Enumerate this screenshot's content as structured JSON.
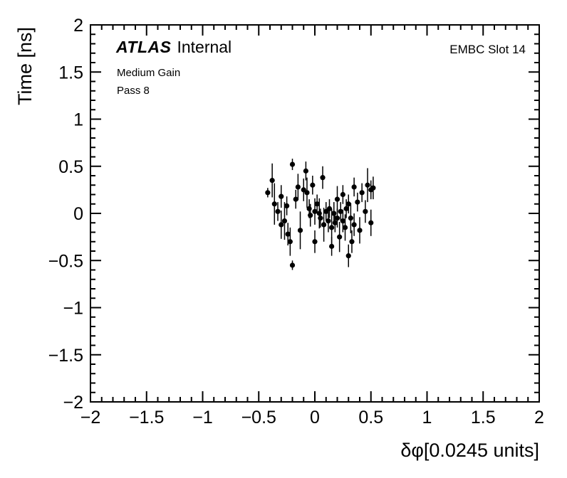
{
  "annotations": {
    "atlas": "ATLAS",
    "atlas_rest": "Internal",
    "gain": "Medium Gain",
    "pass": "Pass 8",
    "slot": "EMBC Slot 14"
  },
  "chart_data": {
    "type": "scatter",
    "title": "",
    "xlabel": "δφ[0.0245 units]",
    "ylabel": "Time [ns]",
    "xlim": [
      -2,
      2
    ],
    "ylim": [
      -2,
      2
    ],
    "grid": false,
    "legend": "none",
    "marker_color": "#000000",
    "xticks": {
      "values": [
        -2,
        -1.5,
        -1,
        -0.5,
        0,
        0.5,
        1,
        1.5,
        2
      ],
      "labels": [
        "−2",
        "−1.5",
        "−1",
        "−0.5",
        "0",
        "0.5",
        "1",
        "1.5",
        "2"
      ]
    },
    "yticks": {
      "values": [
        -2,
        -1.5,
        -1,
        -0.5,
        0,
        0.5,
        1,
        1.5,
        2
      ],
      "labels": [
        "−2",
        "−1.5",
        "−1",
        "−0.5",
        "0",
        "0.5",
        "1",
        "1.5",
        "2"
      ]
    },
    "minor_per_major": 5,
    "points": [
      {
        "x": -0.42,
        "y": 0.22,
        "ey": 0.05
      },
      {
        "x": -0.38,
        "y": 0.35,
        "ey": 0.18
      },
      {
        "x": -0.36,
        "y": 0.1,
        "ey": 0.22
      },
      {
        "x": -0.33,
        "y": 0.02,
        "ey": 0.1
      },
      {
        "x": -0.3,
        "y": 0.18,
        "ey": 0.12
      },
      {
        "x": -0.3,
        "y": -0.12,
        "ey": 0.15
      },
      {
        "x": -0.27,
        "y": -0.08,
        "ey": 0.2
      },
      {
        "x": -0.25,
        "y": 0.08,
        "ey": 0.1
      },
      {
        "x": -0.24,
        "y": -0.22,
        "ey": 0.12
      },
      {
        "x": -0.22,
        "y": -0.3,
        "ey": 0.15
      },
      {
        "x": -0.2,
        "y": -0.55,
        "ey": 0.05
      },
      {
        "x": -0.2,
        "y": 0.52,
        "ey": 0.06
      },
      {
        "x": -0.17,
        "y": 0.15,
        "ey": 0.1
      },
      {
        "x": -0.15,
        "y": 0.28,
        "ey": 0.14
      },
      {
        "x": -0.13,
        "y": -0.18,
        "ey": 0.2
      },
      {
        "x": -0.1,
        "y": 0.25,
        "ey": 0.12
      },
      {
        "x": -0.08,
        "y": 0.45,
        "ey": 0.1
      },
      {
        "x": -0.07,
        "y": 0.22,
        "ey": 0.16
      },
      {
        "x": -0.05,
        "y": 0.05,
        "ey": 0.1
      },
      {
        "x": -0.04,
        "y": -0.02,
        "ey": 0.12
      },
      {
        "x": -0.02,
        "y": 0.3,
        "ey": 0.1
      },
      {
        "x": 0.0,
        "y": 0.02,
        "ey": 0.14
      },
      {
        "x": 0.0,
        "y": -0.3,
        "ey": 0.12
      },
      {
        "x": 0.02,
        "y": 0.1,
        "ey": 0.1
      },
      {
        "x": 0.04,
        "y": 0.0,
        "ey": 0.16
      },
      {
        "x": 0.05,
        "y": -0.05,
        "ey": 0.1
      },
      {
        "x": 0.07,
        "y": 0.38,
        "ey": 0.12
      },
      {
        "x": 0.08,
        "y": -0.12,
        "ey": 0.18
      },
      {
        "x": 0.1,
        "y": 0.02,
        "ey": 0.1
      },
      {
        "x": 0.12,
        "y": -0.08,
        "ey": 0.12
      },
      {
        "x": 0.13,
        "y": 0.05,
        "ey": 0.1
      },
      {
        "x": 0.15,
        "y": -0.15,
        "ey": 0.2
      },
      {
        "x": 0.15,
        "y": -0.35,
        "ey": 0.1
      },
      {
        "x": 0.17,
        "y": 0.0,
        "ey": 0.12
      },
      {
        "x": 0.18,
        "y": -0.1,
        "ey": 0.1
      },
      {
        "x": 0.2,
        "y": 0.15,
        "ey": 0.14
      },
      {
        "x": 0.2,
        "y": -0.05,
        "ey": 0.1
      },
      {
        "x": 0.22,
        "y": -0.25,
        "ey": 0.16
      },
      {
        "x": 0.23,
        "y": 0.02,
        "ey": 0.1
      },
      {
        "x": 0.25,
        "y": -0.08,
        "ey": 0.12
      },
      {
        "x": 0.25,
        "y": 0.2,
        "ey": 0.1
      },
      {
        "x": 0.27,
        "y": -0.15,
        "ey": 0.14
      },
      {
        "x": 0.28,
        "y": 0.05,
        "ey": 0.1
      },
      {
        "x": 0.3,
        "y": -0.45,
        "ey": 0.12
      },
      {
        "x": 0.3,
        "y": 0.1,
        "ey": 0.1
      },
      {
        "x": 0.32,
        "y": -0.05,
        "ey": 0.16
      },
      {
        "x": 0.33,
        "y": -0.3,
        "ey": 0.12
      },
      {
        "x": 0.35,
        "y": 0.28,
        "ey": 0.1
      },
      {
        "x": 0.35,
        "y": -0.12,
        "ey": 0.12
      },
      {
        "x": 0.38,
        "y": 0.12,
        "ey": 0.1
      },
      {
        "x": 0.4,
        "y": -0.18,
        "ey": 0.14
      },
      {
        "x": 0.42,
        "y": 0.22,
        "ey": 0.1
      },
      {
        "x": 0.45,
        "y": 0.02,
        "ey": 0.12
      },
      {
        "x": 0.47,
        "y": 0.3,
        "ey": 0.18
      },
      {
        "x": 0.5,
        "y": 0.25,
        "ey": 0.1
      },
      {
        "x": 0.5,
        "y": -0.1,
        "ey": 0.14
      },
      {
        "x": 0.52,
        "y": 0.27,
        "ey": 0.12
      }
    ]
  }
}
